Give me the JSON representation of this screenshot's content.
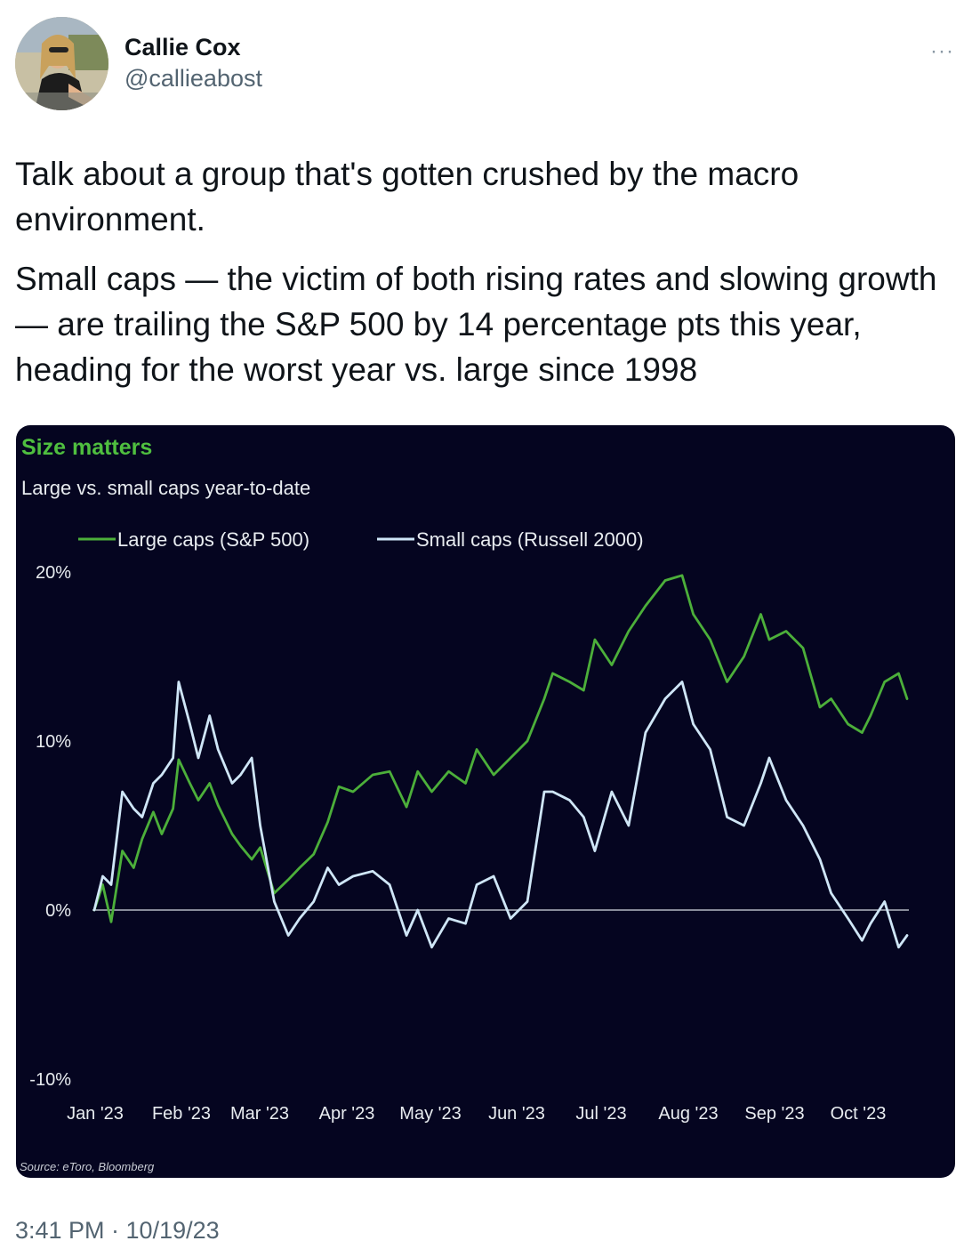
{
  "tweet": {
    "author_name": "Callie Cox",
    "author_handle": "@callieabost",
    "more_icon": "ellipsis-icon",
    "paragraphs": [
      "Talk about a group that's gotten crushed by the macro environment.",
      "Small caps — the victim of both rising rates and slowing growth — are trailing the S&P 500 by 14 percentage pts this year, heading for the worst year vs. large since 1998"
    ],
    "timestamp": "3:41 PM · 10/19/23"
  },
  "colors": {
    "chart_background": "#050520",
    "large_caps": "#4caf3a",
    "small_caps": "#cfe6f7",
    "title_green": "#4fbf3f"
  },
  "chart_data": {
    "type": "line",
    "title": "Size matters",
    "subtitle": "Large vs. small caps year-to-date",
    "source": "Source: eToro, Bloomberg",
    "x_labels": [
      "Jan '23",
      "Feb '23",
      "Mar '23",
      "Apr '23",
      "May '23",
      "Jun '23",
      "Jul '23",
      "Aug '23",
      "Sep '23",
      "Oct '23"
    ],
    "y_ticks": [
      {
        "value": 20,
        "label": "20%"
      },
      {
        "value": 10,
        "label": "10%"
      },
      {
        "value": 0,
        "label": "0%"
      },
      {
        "value": -10,
        "label": "-10%"
      }
    ],
    "ylim": [
      -10,
      20
    ],
    "legend_position": "top-left",
    "series": [
      {
        "name": "Large caps (S&P 500)",
        "color": "#4caf3a",
        "x": [
          "2023-01-03",
          "2023-01-06",
          "2023-01-09",
          "2023-01-13",
          "2023-01-17",
          "2023-01-20",
          "2023-01-24",
          "2023-01-27",
          "2023-01-31",
          "2023-02-02",
          "2023-02-06",
          "2023-02-09",
          "2023-02-13",
          "2023-02-16",
          "2023-02-21",
          "2023-02-24",
          "2023-02-28",
          "2023-03-03",
          "2023-03-08",
          "2023-03-13",
          "2023-03-17",
          "2023-03-22",
          "2023-03-27",
          "2023-03-31",
          "2023-04-05",
          "2023-04-12",
          "2023-04-18",
          "2023-04-24",
          "2023-04-28",
          "2023-05-03",
          "2023-05-09",
          "2023-05-15",
          "2023-05-19",
          "2023-05-25",
          "2023-05-31",
          "2023-06-06",
          "2023-06-12",
          "2023-06-15",
          "2023-06-21",
          "2023-06-26",
          "2023-06-30",
          "2023-07-06",
          "2023-07-12",
          "2023-07-18",
          "2023-07-25",
          "2023-07-31",
          "2023-08-04",
          "2023-08-10",
          "2023-08-16",
          "2023-08-22",
          "2023-08-28",
          "2023-08-31",
          "2023-09-06",
          "2023-09-12",
          "2023-09-18",
          "2023-09-22",
          "2023-09-28",
          "2023-10-03",
          "2023-10-06",
          "2023-10-11",
          "2023-10-16",
          "2023-10-19"
        ],
        "values": [
          0.0,
          1.5,
          -0.7,
          3.5,
          2.5,
          4.2,
          5.8,
          4.5,
          6.0,
          8.9,
          7.5,
          6.5,
          7.5,
          6.2,
          4.5,
          3.8,
          3.0,
          3.7,
          1.0,
          1.8,
          2.5,
          3.3,
          5.2,
          7.3,
          7.0,
          8.0,
          8.2,
          6.1,
          8.2,
          7.0,
          8.2,
          7.5,
          9.5,
          8.0,
          9.0,
          10.0,
          12.5,
          14.0,
          13.5,
          13.0,
          16.0,
          14.5,
          16.5,
          18.0,
          19.5,
          19.8,
          17.5,
          16.0,
          13.5,
          15.0,
          17.5,
          16.0,
          16.5,
          15.5,
          12.0,
          12.5,
          11.0,
          10.5,
          11.5,
          13.5,
          14.0,
          12.5
        ]
      },
      {
        "name": "Small caps (Russell 2000)",
        "color": "#cfe6f7",
        "x": [
          "2023-01-03",
          "2023-01-06",
          "2023-01-09",
          "2023-01-13",
          "2023-01-17",
          "2023-01-20",
          "2023-01-24",
          "2023-01-27",
          "2023-01-31",
          "2023-02-02",
          "2023-02-06",
          "2023-02-09",
          "2023-02-13",
          "2023-02-16",
          "2023-02-21",
          "2023-02-24",
          "2023-02-28",
          "2023-03-03",
          "2023-03-08",
          "2023-03-13",
          "2023-03-17",
          "2023-03-22",
          "2023-03-27",
          "2023-03-31",
          "2023-04-05",
          "2023-04-12",
          "2023-04-18",
          "2023-04-24",
          "2023-04-28",
          "2023-05-03",
          "2023-05-09",
          "2023-05-15",
          "2023-05-19",
          "2023-05-25",
          "2023-05-31",
          "2023-06-06",
          "2023-06-12",
          "2023-06-15",
          "2023-06-21",
          "2023-06-26",
          "2023-06-30",
          "2023-07-06",
          "2023-07-12",
          "2023-07-18",
          "2023-07-25",
          "2023-07-31",
          "2023-08-04",
          "2023-08-10",
          "2023-08-16",
          "2023-08-22",
          "2023-08-28",
          "2023-08-31",
          "2023-09-06",
          "2023-09-12",
          "2023-09-18",
          "2023-09-22",
          "2023-09-28",
          "2023-10-03",
          "2023-10-06",
          "2023-10-11",
          "2023-10-16",
          "2023-10-19"
        ],
        "values": [
          0.0,
          2.0,
          1.5,
          7.0,
          6.0,
          5.5,
          7.5,
          8.0,
          9.0,
          13.5,
          11.0,
          9.0,
          11.5,
          9.5,
          7.5,
          8.0,
          9.0,
          5.0,
          0.5,
          -1.5,
          -0.5,
          0.5,
          2.5,
          1.5,
          2.0,
          2.3,
          1.5,
          -1.5,
          0.0,
          -2.2,
          -0.5,
          -0.8,
          1.5,
          2.0,
          -0.5,
          0.5,
          7.0,
          7.0,
          6.5,
          5.5,
          3.5,
          7.0,
          5.0,
          10.5,
          12.5,
          13.5,
          11.0,
          9.5,
          5.5,
          5.0,
          7.5,
          9.0,
          6.5,
          5.0,
          3.0,
          1.0,
          -0.5,
          -1.8,
          -0.8,
          0.5,
          -2.2,
          -1.5
        ]
      }
    ]
  }
}
